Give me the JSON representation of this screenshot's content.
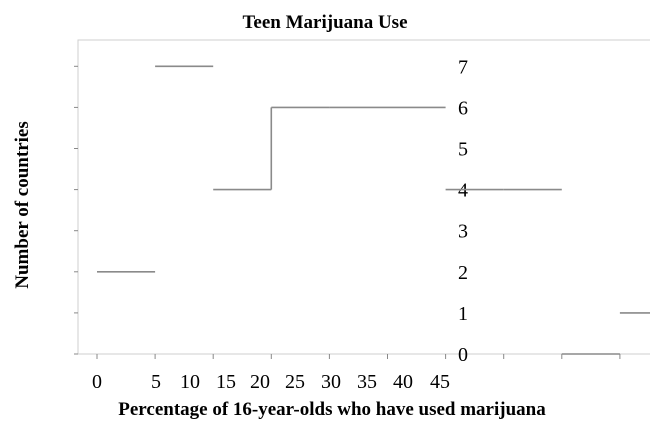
{
  "chart_data": {
    "type": "histogram",
    "title": "Teen Marijuana Use",
    "xlabel": "Percentage of 16-year-olds who have used marijuana",
    "ylabel": "Number of countries",
    "x_tick_labels": [
      "0",
      "5",
      "10",
      "15",
      "20",
      "25",
      "30",
      "35",
      "40",
      "45"
    ],
    "y_tick_labels": [
      "0",
      "1",
      "2",
      "3",
      "4",
      "5",
      "6",
      "7"
    ],
    "bins": [
      {
        "from": 0,
        "to": 5,
        "count": 2
      },
      {
        "from": 5,
        "to": 10,
        "count": 7
      },
      {
        "from": 10,
        "to": 15,
        "count": 4
      },
      {
        "from": 15,
        "to": 20,
        "count": 6
      },
      {
        "from": 20,
        "to": 25,
        "count": 6
      },
      {
        "from": 25,
        "to": 30,
        "count": 6
      },
      {
        "from": 30,
        "to": 35,
        "count": 4
      },
      {
        "from": 35,
        "to": 40,
        "count": 4
      },
      {
        "from": 40,
        "to": 45,
        "count": 0
      },
      {
        "from": 45,
        "to": 50,
        "count": 1
      }
    ],
    "xlim": [
      0,
      50
    ],
    "ylim": [
      0,
      7
    ]
  }
}
